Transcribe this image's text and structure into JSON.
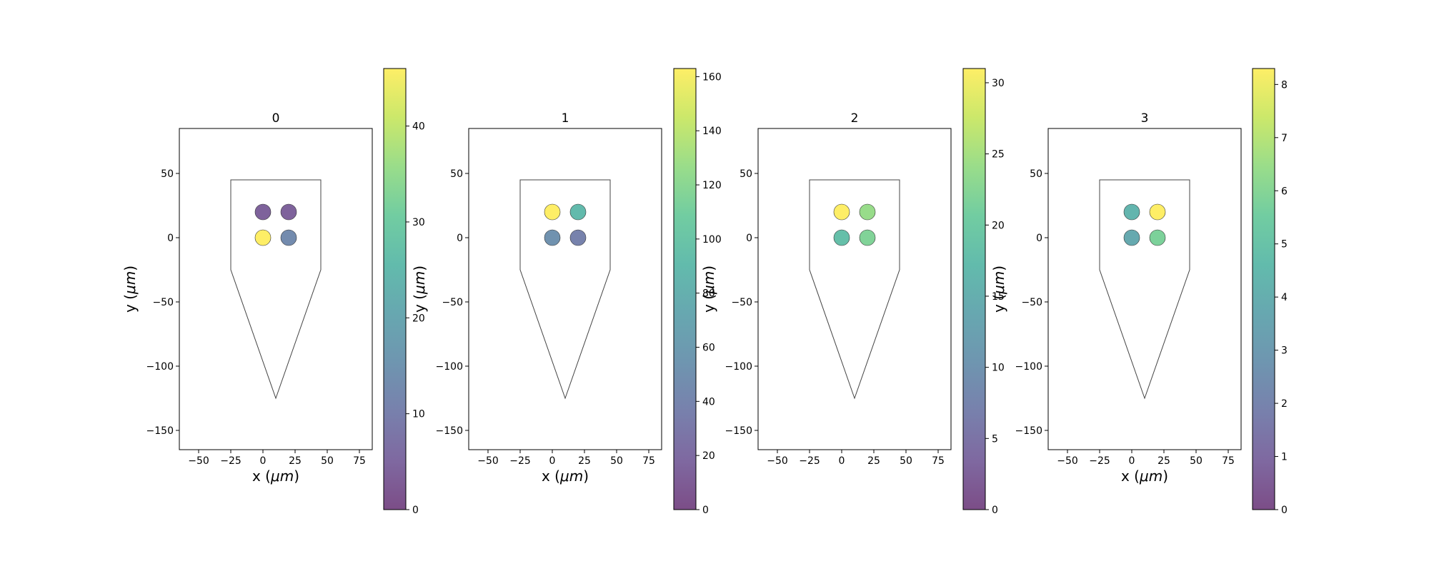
{
  "chart_data": [
    {
      "type": "scatter",
      "title": "0",
      "xlabel": "x (μm)",
      "ylabel": "y (μm)",
      "xlim": [
        -65,
        85
      ],
      "ylim": [
        -165,
        85
      ],
      "xticks": [
        "−50",
        "−25",
        "0",
        "25",
        "50",
        "75"
      ],
      "yticks": [
        "50",
        "0",
        "−50",
        "−100",
        "−150"
      ],
      "probe_outline": [
        [
          -25,
          -25
        ],
        [
          -25,
          45
        ],
        [
          45,
          45
        ],
        [
          45,
          -25
        ],
        [
          10,
          -125
        ]
      ],
      "points": [
        {
          "x": 0,
          "y": 20,
          "value": 4
        },
        {
          "x": 20,
          "y": 20,
          "value": 4
        },
        {
          "x": 0,
          "y": 0,
          "value": 46
        },
        {
          "x": 20,
          "y": 0,
          "value": 13
        }
      ],
      "colorbar": {
        "min": 0,
        "max": 46,
        "ticks": [
          "0",
          "10",
          "20",
          "30",
          "40"
        ]
      }
    },
    {
      "type": "scatter",
      "title": "1",
      "xlabel": "x (μm)",
      "ylabel": "y (μm)",
      "xlim": [
        -65,
        85
      ],
      "ylim": [
        -165,
        85
      ],
      "xticks": [
        "−50",
        "−25",
        "0",
        "25",
        "50",
        "75"
      ],
      "yticks": [
        "50",
        "0",
        "−50",
        "−100",
        "−150"
      ],
      "probe_outline": [
        [
          -25,
          -25
        ],
        [
          -25,
          45
        ],
        [
          45,
          45
        ],
        [
          45,
          -25
        ],
        [
          10,
          -125
        ]
      ],
      "points": [
        {
          "x": 0,
          "y": 20,
          "value": 163
        },
        {
          "x": 20,
          "y": 20,
          "value": 90
        },
        {
          "x": 0,
          "y": 0,
          "value": 52
        },
        {
          "x": 20,
          "y": 0,
          "value": 38
        }
      ],
      "colorbar": {
        "min": 0,
        "max": 163,
        "ticks": [
          "0",
          "20",
          "40",
          "60",
          "80",
          "100",
          "120",
          "140",
          "160"
        ]
      }
    },
    {
      "type": "scatter",
      "title": "2",
      "xlabel": "",
      "ylabel": "y (μm)",
      "xlim": [
        -65,
        85
      ],
      "ylim": [
        -165,
        85
      ],
      "xticks": [
        "−50",
        "−25",
        "0",
        "25",
        "50",
        "75"
      ],
      "yticks": [
        "50",
        "0",
        "−50",
        "−100",
        "−150"
      ],
      "probe_outline": [
        [
          -25,
          -25
        ],
        [
          -25,
          45
        ],
        [
          45,
          45
        ],
        [
          45,
          -25
        ],
        [
          10,
          -125
        ]
      ],
      "points": [
        {
          "x": 0,
          "y": 20,
          "value": 31
        },
        {
          "x": 20,
          "y": 20,
          "value": 24
        },
        {
          "x": 0,
          "y": 0,
          "value": 18
        },
        {
          "x": 20,
          "y": 0,
          "value": 22
        }
      ],
      "colorbar": {
        "min": 0,
        "max": 31,
        "ticks": [
          "0",
          "5",
          "10",
          "15",
          "20",
          "25",
          "30"
        ]
      }
    },
    {
      "type": "scatter",
      "title": "3",
      "xlabel": "x (μm)",
      "ylabel": "y (μm)",
      "xlim": [
        -65,
        85
      ],
      "ylim": [
        -165,
        85
      ],
      "xticks": [
        "−50",
        "−25",
        "0",
        "25",
        "50",
        "75"
      ],
      "yticks": [
        "50",
        "0",
        "−50",
        "−100",
        "−150"
      ],
      "probe_outline": [
        [
          -25,
          -25
        ],
        [
          -25,
          45
        ],
        [
          45,
          45
        ],
        [
          45,
          -25
        ],
        [
          10,
          -125
        ]
      ],
      "points": [
        {
          "x": 0,
          "y": 20,
          "value": 4.3
        },
        {
          "x": 20,
          "y": 20,
          "value": 8.3
        },
        {
          "x": 0,
          "y": 0,
          "value": 3.8
        },
        {
          "x": 20,
          "y": 0,
          "value": 5.8
        }
      ],
      "colorbar": {
        "min": 0,
        "max": 8.3,
        "ticks": [
          "0",
          "1",
          "2",
          "3",
          "4",
          "5",
          "6",
          "7",
          "8"
        ]
      }
    }
  ]
}
